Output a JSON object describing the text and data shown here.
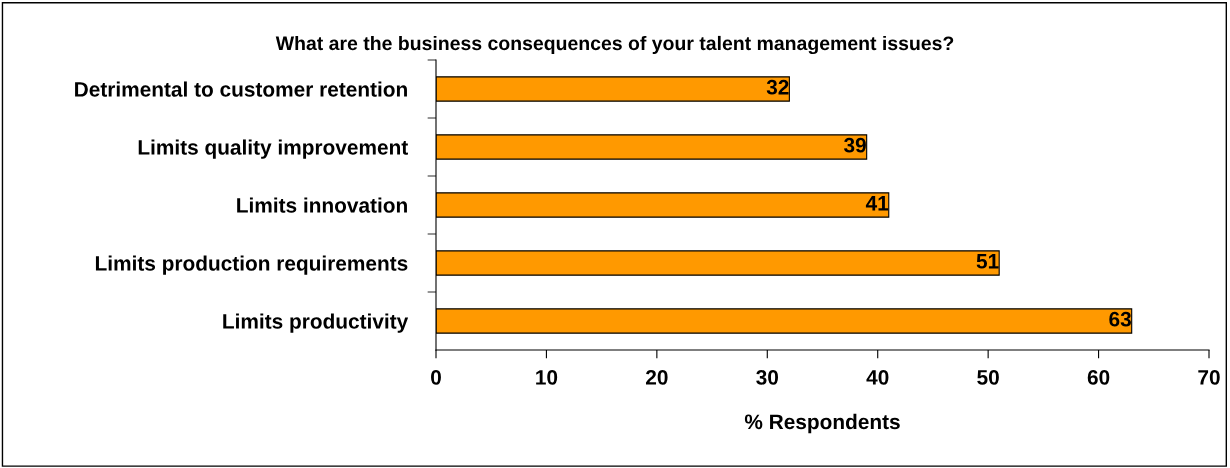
{
  "chart_data": {
    "type": "bar",
    "orientation": "horizontal",
    "title": "What are the business consequences of your talent management issues?",
    "xlabel": "% Respondents",
    "categories": [
      "Detrimental to customer retention",
      "Limits quality improvement",
      "Limits innovation",
      "Limits production requirements",
      "Limits productivity"
    ],
    "values": [
      32,
      39,
      41,
      51,
      63
    ],
    "color": "#ff9900",
    "xlim": [
      0,
      70
    ],
    "xticks": [
      0,
      10,
      20,
      30,
      40,
      50,
      60,
      70
    ],
    "data_labels": true,
    "grid": false,
    "legend": false
  }
}
